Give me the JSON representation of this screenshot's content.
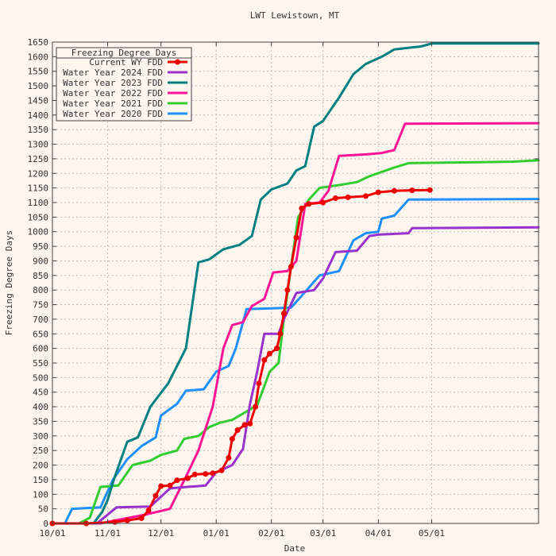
{
  "chart_data": {
    "type": "line",
    "title": "LWT Lewistown, MT",
    "xlabel": "Date",
    "ylabel": "Freezing Degree Days",
    "x_axis_type": "date",
    "xlim": [
      "2023-10-01",
      "2024-06-30"
    ],
    "ylim": [
      0,
      1650
    ],
    "y_tick_step": 50,
    "x_ticks": [
      {
        "date": "2023-10-01",
        "label": "10/01"
      },
      {
        "date": "2023-11-01",
        "label": "11/01"
      },
      {
        "date": "2023-12-01",
        "label": "12/01"
      },
      {
        "date": "2024-01-01",
        "label": "01/01"
      },
      {
        "date": "2024-02-01",
        "label": "02/01"
      },
      {
        "date": "2024-03-01",
        "label": "03/01"
      },
      {
        "date": "2024-04-01",
        "label": "04/01"
      },
      {
        "date": "2024-05-01",
        "label": "05/01"
      }
    ],
    "grid": true,
    "legend": {
      "title": "Freezing Degree Days",
      "position": "top-left"
    },
    "series": [
      {
        "name": "Current WY FDD",
        "color": "#ee0000",
        "marker": "circle",
        "points": [
          [
            "2023-10-01",
            0
          ],
          [
            "2023-10-20",
            0
          ],
          [
            "2023-11-05",
            5
          ],
          [
            "2023-11-12",
            10
          ],
          [
            "2023-11-20",
            18
          ],
          [
            "2023-11-24",
            45
          ],
          [
            "2023-11-28",
            95
          ],
          [
            "2023-12-01",
            128
          ],
          [
            "2023-12-06",
            130
          ],
          [
            "2023-12-10",
            148
          ],
          [
            "2023-12-16",
            155
          ],
          [
            "2023-12-20",
            168
          ],
          [
            "2023-12-26",
            170
          ],
          [
            "2023-12-30",
            172
          ],
          [
            "2024-01-04",
            182
          ],
          [
            "2024-01-08",
            225
          ],
          [
            "2024-01-10",
            290
          ],
          [
            "2024-01-13",
            320
          ],
          [
            "2024-01-17",
            338
          ],
          [
            "2024-01-20",
            342
          ],
          [
            "2024-01-23",
            400
          ],
          [
            "2024-01-25",
            480
          ],
          [
            "2024-01-28",
            560
          ],
          [
            "2024-01-31",
            582
          ],
          [
            "2024-02-04",
            600
          ],
          [
            "2024-02-06",
            650
          ],
          [
            "2024-02-08",
            720
          ],
          [
            "2024-02-10",
            800
          ],
          [
            "2024-02-12",
            880
          ],
          [
            "2024-02-15",
            980
          ],
          [
            "2024-02-18",
            1080
          ],
          [
            "2024-02-22",
            1095
          ],
          [
            "2024-03-01",
            1100
          ],
          [
            "2024-03-08",
            1115
          ],
          [
            "2024-03-15",
            1118
          ],
          [
            "2024-03-25",
            1122
          ],
          [
            "2024-04-01",
            1135
          ],
          [
            "2024-04-10",
            1140
          ],
          [
            "2024-04-20",
            1142
          ],
          [
            "2024-04-30",
            1143
          ]
        ]
      },
      {
        "name": "Water Year 2024 FDD",
        "color": "#9932cc",
        "points": [
          [
            "2023-10-01",
            0
          ],
          [
            "2023-10-26",
            0
          ],
          [
            "2023-11-06",
            55
          ],
          [
            "2023-11-25",
            58
          ],
          [
            "2023-12-06",
            120
          ],
          [
            "2023-12-15",
            125
          ],
          [
            "2023-12-26",
            130
          ],
          [
            "2024-01-01",
            175
          ],
          [
            "2024-01-10",
            200
          ],
          [
            "2024-01-16",
            255
          ],
          [
            "2024-01-20",
            410
          ],
          [
            "2024-01-24",
            520
          ],
          [
            "2024-01-28",
            650
          ],
          [
            "2024-02-05",
            650
          ],
          [
            "2024-02-08",
            700
          ],
          [
            "2024-02-15",
            790
          ],
          [
            "2024-02-25",
            800
          ],
          [
            "2024-03-01",
            840
          ],
          [
            "2024-03-08",
            930
          ],
          [
            "2024-03-20",
            935
          ],
          [
            "2024-03-27",
            985
          ],
          [
            "2024-04-01",
            990
          ],
          [
            "2024-04-18",
            995
          ],
          [
            "2024-04-20",
            1012
          ],
          [
            "2024-06-30",
            1015
          ]
        ]
      },
      {
        "name": "Water Year 2023 FDD",
        "color": "#008080",
        "points": [
          [
            "2023-10-01",
            0
          ],
          [
            "2023-10-24",
            0
          ],
          [
            "2023-10-29",
            40
          ],
          [
            "2023-11-01",
            80
          ],
          [
            "2023-11-05",
            160
          ],
          [
            "2023-11-12",
            280
          ],
          [
            "2023-11-18",
            295
          ],
          [
            "2023-11-25",
            400
          ],
          [
            "2023-12-05",
            480
          ],
          [
            "2023-12-15",
            600
          ],
          [
            "2023-12-22",
            895
          ],
          [
            "2023-12-28",
            905
          ],
          [
            "2024-01-05",
            940
          ],
          [
            "2024-01-14",
            955
          ],
          [
            "2024-01-21",
            985
          ],
          [
            "2024-01-26",
            1110
          ],
          [
            "2024-02-01",
            1145
          ],
          [
            "2024-02-10",
            1165
          ],
          [
            "2024-02-15",
            1210
          ],
          [
            "2024-02-20",
            1225
          ],
          [
            "2024-02-25",
            1360
          ],
          [
            "2024-03-01",
            1380
          ],
          [
            "2024-03-10",
            1460
          ],
          [
            "2024-03-18",
            1540
          ],
          [
            "2024-03-25",
            1575
          ],
          [
            "2024-04-03",
            1600
          ],
          [
            "2024-04-10",
            1625
          ],
          [
            "2024-04-25",
            1635
          ],
          [
            "2024-05-01",
            1645
          ],
          [
            "2024-06-30",
            1645
          ]
        ]
      },
      {
        "name": "Water Year 2022 FDD",
        "color": "#ff1493",
        "points": [
          [
            "2023-10-01",
            0
          ],
          [
            "2023-10-28",
            0
          ],
          [
            "2023-11-05",
            10
          ],
          [
            "2023-11-22",
            30
          ],
          [
            "2023-12-06",
            50
          ],
          [
            "2023-12-15",
            160
          ],
          [
            "2023-12-22",
            250
          ],
          [
            "2023-12-30",
            400
          ],
          [
            "2024-01-05",
            600
          ],
          [
            "2024-01-10",
            680
          ],
          [
            "2024-01-16",
            690
          ],
          [
            "2024-01-21",
            745
          ],
          [
            "2024-01-28",
            770
          ],
          [
            "2024-02-02",
            860
          ],
          [
            "2024-02-10",
            865
          ],
          [
            "2024-02-15",
            900
          ],
          [
            "2024-02-20",
            1095
          ],
          [
            "2024-02-28",
            1100
          ],
          [
            "2024-03-04",
            1140
          ],
          [
            "2024-03-10",
            1260
          ],
          [
            "2024-03-25",
            1265
          ],
          [
            "2024-04-03",
            1270
          ],
          [
            "2024-04-10",
            1280
          ],
          [
            "2024-04-16",
            1370
          ],
          [
            "2024-06-30",
            1372
          ]
        ]
      },
      {
        "name": "Water Year 2021 FDD",
        "color": "#32cd32",
        "points": [
          [
            "2023-10-01",
            0
          ],
          [
            "2023-10-16",
            0
          ],
          [
            "2023-10-22",
            20
          ],
          [
            "2023-10-28",
            125
          ],
          [
            "2023-11-07",
            130
          ],
          [
            "2023-11-15",
            200
          ],
          [
            "2023-11-25",
            215
          ],
          [
            "2023-12-01",
            235
          ],
          [
            "2023-12-10",
            250
          ],
          [
            "2023-12-14",
            290
          ],
          [
            "2023-12-22",
            300
          ],
          [
            "2023-12-28",
            330
          ],
          [
            "2024-01-03",
            345
          ],
          [
            "2024-01-10",
            355
          ],
          [
            "2024-01-17",
            380
          ],
          [
            "2024-01-24",
            405
          ],
          [
            "2024-01-31",
            520
          ],
          [
            "2024-02-05",
            550
          ],
          [
            "2024-02-08",
            700
          ],
          [
            "2024-02-12",
            880
          ],
          [
            "2024-02-16",
            1050
          ],
          [
            "2024-02-22",
            1110
          ],
          [
            "2024-02-28",
            1150
          ],
          [
            "2024-03-10",
            1160
          ],
          [
            "2024-03-20",
            1170
          ],
          [
            "2024-03-27",
            1190
          ],
          [
            "2024-04-10",
            1220
          ],
          [
            "2024-04-18",
            1235
          ],
          [
            "2024-06-15",
            1240
          ],
          [
            "2024-06-30",
            1245
          ]
        ]
      },
      {
        "name": "Water Year 2020 FDD",
        "color": "#1e90ff",
        "points": [
          [
            "2023-10-01",
            0
          ],
          [
            "2023-10-08",
            0
          ],
          [
            "2023-10-12",
            50
          ],
          [
            "2023-10-28",
            55
          ],
          [
            "2023-11-04",
            150
          ],
          [
            "2023-11-12",
            220
          ],
          [
            "2023-11-20",
            265
          ],
          [
            "2023-11-28",
            295
          ],
          [
            "2023-12-01",
            370
          ],
          [
            "2023-12-10",
            410
          ],
          [
            "2023-12-15",
            455
          ],
          [
            "2023-12-25",
            460
          ],
          [
            "2024-01-01",
            520
          ],
          [
            "2024-01-08",
            540
          ],
          [
            "2024-01-12",
            600
          ],
          [
            "2024-01-18",
            735
          ],
          [
            "2024-02-01",
            737
          ],
          [
            "2024-02-12",
            740
          ],
          [
            "2024-02-18",
            780
          ],
          [
            "2024-02-28",
            850
          ],
          [
            "2024-03-10",
            865
          ],
          [
            "2024-03-18",
            970
          ],
          [
            "2024-03-25",
            995
          ],
          [
            "2024-04-01",
            1000
          ],
          [
            "2024-04-03",
            1045
          ],
          [
            "2024-04-10",
            1055
          ],
          [
            "2024-04-18",
            1110
          ],
          [
            "2024-06-30",
            1112
          ]
        ]
      }
    ]
  }
}
